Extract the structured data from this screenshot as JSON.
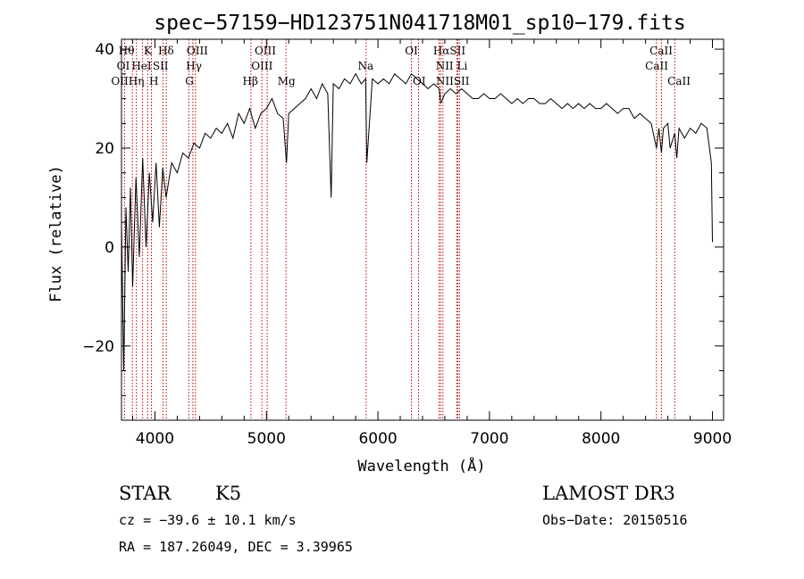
{
  "chart_data": {
    "type": "line",
    "title": "spec−57159−HD123751N041718M01_sp10−179.fits",
    "xlabel": "Wavelength (Å)",
    "ylabel": "Flux (relative)",
    "xlim": [
      3700,
      9100
    ],
    "ylim": [
      -35,
      42
    ],
    "x_ticks": [
      4000,
      5000,
      6000,
      7000,
      8000,
      9000
    ],
    "y_ticks": [
      -20,
      0,
      20,
      40
    ],
    "x_tick_labels": [
      "4000",
      "5000",
      "6000",
      "7000",
      "8000",
      "9000"
    ],
    "y_tick_labels": [
      "−20",
      "0",
      "20",
      "40"
    ],
    "series": [
      {
        "name": "flux",
        "x": [
          3700,
          3720,
          3740,
          3760,
          3780,
          3800,
          3830,
          3860,
          3890,
          3920,
          3950,
          3980,
          4010,
          4040,
          4070,
          4100,
          4150,
          4200,
          4250,
          4300,
          4350,
          4400,
          4450,
          4500,
          4550,
          4600,
          4650,
          4700,
          4750,
          4800,
          4850,
          4900,
          4950,
          5000,
          5050,
          5100,
          5150,
          5180,
          5200,
          5250,
          5300,
          5350,
          5400,
          5450,
          5500,
          5550,
          5580,
          5600,
          5650,
          5700,
          5750,
          5800,
          5850,
          5890,
          5900,
          5950,
          6000,
          6050,
          6100,
          6150,
          6200,
          6250,
          6300,
          6350,
          6400,
          6450,
          6500,
          6550,
          6563,
          6600,
          6650,
          6700,
          6750,
          6800,
          6850,
          6900,
          6950,
          7000,
          7050,
          7100,
          7150,
          7200,
          7250,
          7300,
          7350,
          7400,
          7450,
          7500,
          7550,
          7600,
          7650,
          7700,
          7750,
          7800,
          7850,
          7900,
          7950,
          8000,
          8050,
          8100,
          8150,
          8200,
          8250,
          8300,
          8350,
          8400,
          8450,
          8498,
          8520,
          8542,
          8560,
          8600,
          8620,
          8662,
          8680,
          8700,
          8750,
          8800,
          8850,
          8900,
          8950,
          8990,
          9000
        ],
        "values": [
          5,
          -25,
          8,
          -5,
          12,
          -8,
          14,
          -2,
          18,
          0,
          15,
          5,
          17,
          4,
          16,
          10,
          17,
          15,
          19,
          18,
          21,
          20,
          23,
          22,
          24,
          23,
          25,
          22,
          27,
          25,
          28,
          24,
          27,
          28,
          30,
          27,
          26,
          17,
          27,
          28,
          29,
          30,
          32,
          30,
          33,
          31,
          10,
          33,
          32,
          34,
          33,
          35,
          33,
          34,
          17,
          34,
          33,
          34,
          33,
          35,
          34,
          33,
          35,
          34,
          33,
          32,
          33,
          32,
          29,
          31,
          32,
          31,
          32,
          31,
          30,
          30,
          31,
          30,
          30,
          31,
          30,
          29,
          30,
          29,
          30,
          30,
          29,
          29,
          30,
          29,
          28,
          29,
          28,
          29,
          28,
          29,
          28,
          28,
          29,
          28,
          27,
          28,
          28,
          26,
          27,
          26,
          25,
          20,
          24,
          19,
          24,
          25,
          20,
          23,
          18,
          24,
          22,
          24,
          23,
          25,
          24,
          17,
          1
        ]
      }
    ],
    "line_markers": [
      {
        "name": "OII",
        "wavelength": 3727
      },
      {
        "name": "Hθ",
        "wavelength": 3798
      },
      {
        "name": "Hη",
        "wavelength": 3835
      },
      {
        "name": "HeI",
        "wavelength": 3889
      },
      {
        "name": "K",
        "wavelength": 3934
      },
      {
        "name": "H",
        "wavelength": 3968
      },
      {
        "name": "SII",
        "wavelength": 4072
      },
      {
        "name": "Hδ",
        "wavelength": 4102
      },
      {
        "name": "G",
        "wavelength": 4304
      },
      {
        "name": "Hγ",
        "wavelength": 4340
      },
      {
        "name": "OIII",
        "wavelength": 4363
      },
      {
        "name": "Hβ",
        "wavelength": 4861
      },
      {
        "name": "OIII",
        "wavelength": 4959
      },
      {
        "name": "OIII",
        "wavelength": 5007
      },
      {
        "name": "Mg",
        "wavelength": 5175
      },
      {
        "name": "Na",
        "wavelength": 5894
      },
      {
        "name": "OI",
        "wavelength": 6300
      },
      {
        "name": "OI",
        "wavelength": 6364
      },
      {
        "name": "NII",
        "wavelength": 6548
      },
      {
        "name": "Hα",
        "wavelength": 6563
      },
      {
        "name": "NII",
        "wavelength": 6583
      },
      {
        "name": "Li",
        "wavelength": 6708
      },
      {
        "name": "SII",
        "wavelength": 6716
      },
      {
        "name": "SII",
        "wavelength": 6731
      },
      {
        "name": "CaII",
        "wavelength": 8498
      },
      {
        "name": "CaII",
        "wavelength": 8542
      },
      {
        "name": "CaII",
        "wavelength": 8662
      }
    ],
    "line_labels": [
      {
        "text": "Hθ",
        "wavelength": 3745,
        "row": 1
      },
      {
        "text": "K",
        "wavelength": 3935,
        "row": 1
      },
      {
        "text": "Hδ",
        "wavelength": 4100,
        "row": 1
      },
      {
        "text": "OIII",
        "wavelength": 4380,
        "row": 1
      },
      {
        "text": "OIII",
        "wavelength": 4990,
        "row": 1
      },
      {
        "text": "OI",
        "wavelength": 6300,
        "row": 1
      },
      {
        "text": "HαSII",
        "wavelength": 6640,
        "row": 1
      },
      {
        "text": "CaII",
        "wavelength": 8540,
        "row": 1
      },
      {
        "text": "OI",
        "wavelength": 3715,
        "row": 2
      },
      {
        "text": "HeI",
        "wavelength": 3880,
        "row": 2
      },
      {
        "text": "SII",
        "wavelength": 4050,
        "row": 2
      },
      {
        "text": "Hγ",
        "wavelength": 4350,
        "row": 2
      },
      {
        "text": "OIII",
        "wavelength": 4960,
        "row": 2
      },
      {
        "text": "Na",
        "wavelength": 5890,
        "row": 2
      },
      {
        "text": "NII Li",
        "wavelength": 6660,
        "row": 2
      },
      {
        "text": "CaII",
        "wavelength": 8500,
        "row": 2
      },
      {
        "text": "OIIHη",
        "wavelength": 3755,
        "row": 3
      },
      {
        "text": "H",
        "wavelength": 3990,
        "row": 3
      },
      {
        "text": "G",
        "wavelength": 4310,
        "row": 3
      },
      {
        "text": "Hβ",
        "wavelength": 4855,
        "row": 3
      },
      {
        "text": "Mg",
        "wavelength": 5180,
        "row": 3
      },
      {
        "text": "OI",
        "wavelength": 6370,
        "row": 3
      },
      {
        "text": "NIISII",
        "wavelength": 6670,
        "row": 3
      },
      {
        "text": "CaII",
        "wavelength": 8700,
        "row": 3
      }
    ]
  },
  "info": {
    "class_label": "STAR",
    "subclass": "K5",
    "survey": "LAMOST DR3",
    "cz_text": "cz = −39.6 ± 10.1 km/s",
    "obs_date": "Obs−Date: 20150516",
    "coords": "RA = 187.26049, DEC =   3.39965"
  },
  "colors": {
    "spectrum": "#000000",
    "marker": "#c00000",
    "axis": "#000000"
  }
}
